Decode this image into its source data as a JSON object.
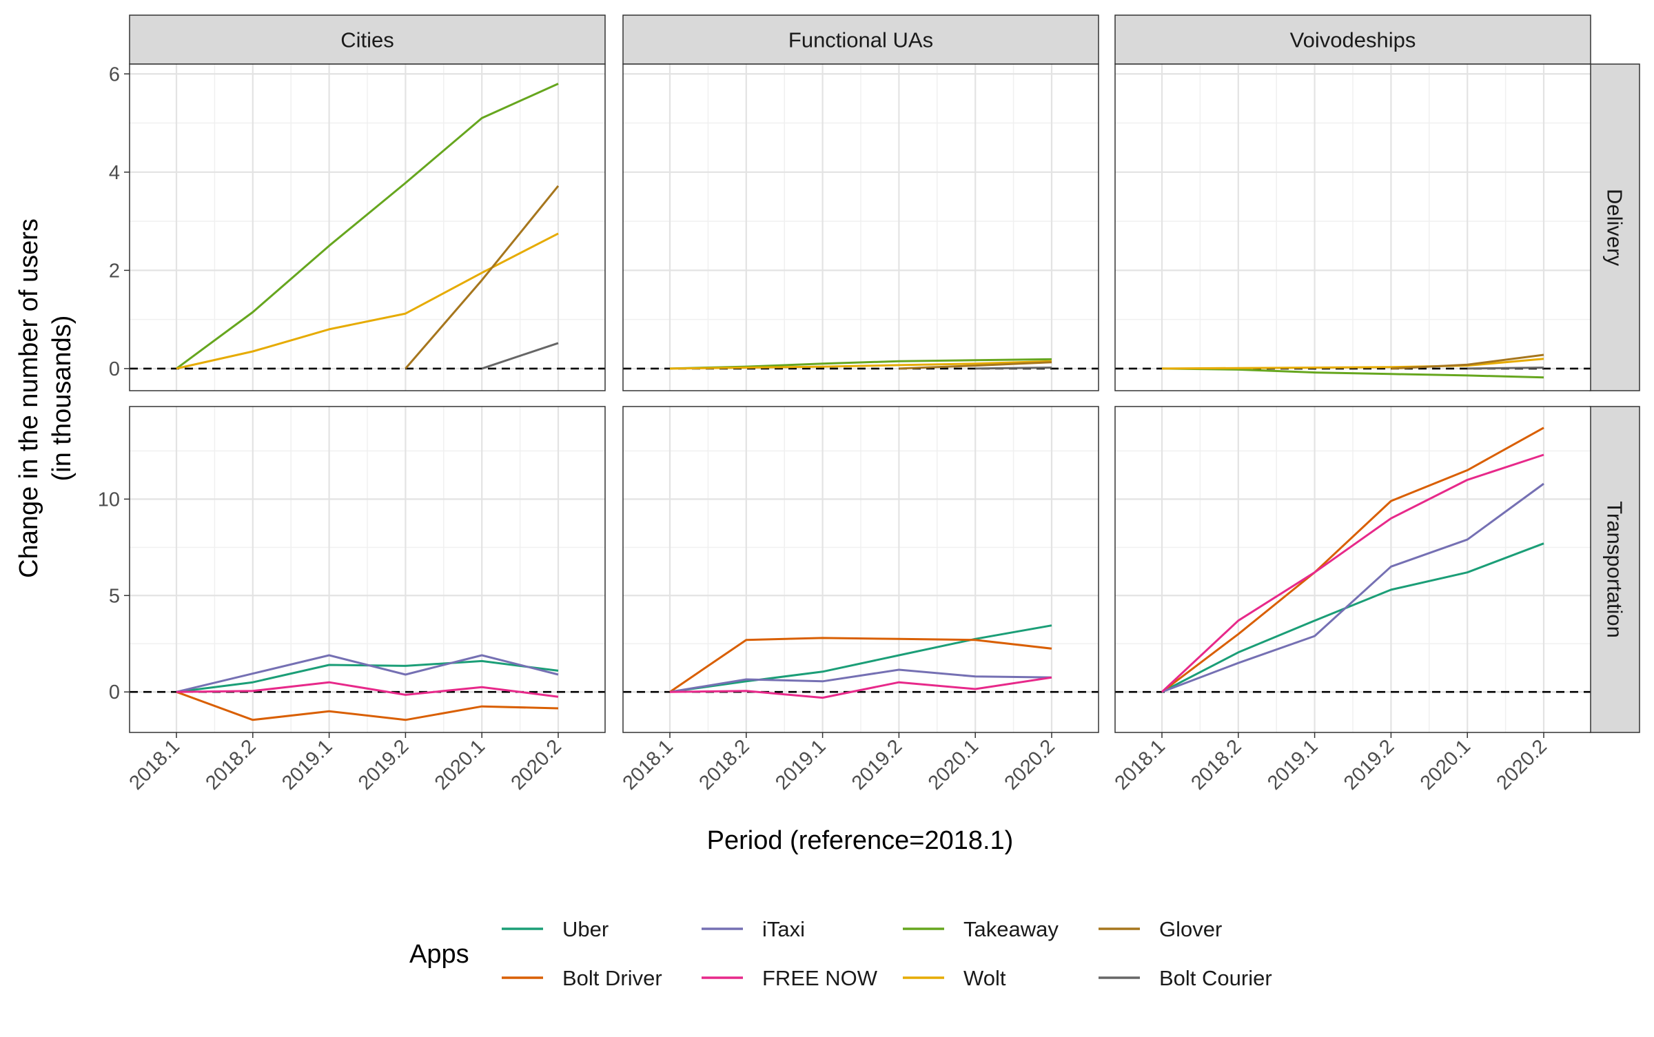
{
  "chart_data": {
    "type": "line",
    "layout": "facet-grid",
    "xlabel": "Period (reference=2018.1)",
    "ylabel_line1": "Change in the number of users",
    "ylabel_line2": "(in thousands)",
    "x": [
      "2018.1",
      "2018.2",
      "2019.1",
      "2019.2",
      "2020.1",
      "2020.2"
    ],
    "columns": [
      "Cities",
      "Functional UAs",
      "Voivodeships"
    ],
    "rows": [
      {
        "label": "Delivery",
        "ylim": [
          -0.45,
          6.2
        ],
        "yticks": [
          0,
          2,
          4,
          6
        ]
      },
      {
        "label": "Transportation",
        "ylim": [
          -2.1,
          14.8
        ],
        "yticks": [
          0,
          5,
          10
        ]
      }
    ],
    "reference_line": 0,
    "grid": true,
    "legend": {
      "title": "Apps",
      "position": "bottom",
      "entries": [
        {
          "name": "Uber",
          "color": "#1b9e77"
        },
        {
          "name": "Bolt Driver",
          "color": "#d95f02"
        },
        {
          "name": "iTaxi",
          "color": "#7570b3"
        },
        {
          "name": "FREE NOW",
          "color": "#e7298a"
        },
        {
          "name": "Takeaway",
          "color": "#66a61e"
        },
        {
          "name": "Wolt",
          "color": "#e6ab02"
        },
        {
          "name": "Glover",
          "color": "#a6761d"
        },
        {
          "name": "Bolt Courier",
          "color": "#666666"
        }
      ]
    },
    "panels": [
      {
        "row": "Delivery",
        "column": "Cities",
        "series": [
          {
            "name": "Takeaway",
            "values": [
              0,
              1.15,
              2.5,
              3.78,
              5.1,
              5.8
            ]
          },
          {
            "name": "Wolt",
            "values": [
              0,
              0.35,
              0.8,
              1.12,
              1.95,
              2.75
            ]
          },
          {
            "name": "Glover",
            "values": [
              null,
              null,
              null,
              0,
              1.8,
              3.72
            ]
          },
          {
            "name": "Bolt Courier",
            "values": [
              null,
              null,
              null,
              null,
              0,
              0.52
            ]
          }
        ]
      },
      {
        "row": "Delivery",
        "column": "Functional UAs",
        "series": [
          {
            "name": "Takeaway",
            "values": [
              0,
              0.04,
              0.1,
              0.15,
              0.17,
              0.19
            ]
          },
          {
            "name": "Wolt",
            "values": [
              0,
              0.02,
              0.04,
              0.07,
              0.1,
              0.15
            ]
          },
          {
            "name": "Glover",
            "values": [
              null,
              null,
              null,
              0,
              0.06,
              0.13
            ]
          },
          {
            "name": "Bolt Courier",
            "values": [
              null,
              null,
              null,
              null,
              0,
              0.02
            ]
          }
        ]
      },
      {
        "row": "Delivery",
        "column": "Voivodeships",
        "series": [
          {
            "name": "Takeaway",
            "values": [
              0,
              -0.02,
              -0.08,
              -0.11,
              -0.14,
              -0.18
            ]
          },
          {
            "name": "Wolt",
            "values": [
              0,
              0.01,
              0.02,
              0.03,
              0.06,
              0.2
            ]
          },
          {
            "name": "Glover",
            "values": [
              null,
              null,
              null,
              0,
              0.08,
              0.28
            ]
          },
          {
            "name": "Bolt Courier",
            "values": [
              null,
              null,
              null,
              null,
              0,
              0.02
            ]
          }
        ]
      },
      {
        "row": "Transportation",
        "column": "Cities",
        "series": [
          {
            "name": "Uber",
            "values": [
              0,
              0.5,
              1.4,
              1.35,
              1.6,
              1.1
            ]
          },
          {
            "name": "Bolt Driver",
            "values": [
              0,
              -1.45,
              -1.0,
              -1.45,
              -0.75,
              -0.85
            ]
          },
          {
            "name": "iTaxi",
            "values": [
              0,
              0.95,
              1.9,
              0.9,
              1.9,
              0.9
            ]
          },
          {
            "name": "FREE NOW",
            "values": [
              0,
              0.05,
              0.5,
              -0.15,
              0.25,
              -0.25
            ]
          }
        ]
      },
      {
        "row": "Transportation",
        "column": "Functional UAs",
        "series": [
          {
            "name": "Uber",
            "values": [
              0,
              0.55,
              1.05,
              1.9,
              2.75,
              3.45
            ]
          },
          {
            "name": "Bolt Driver",
            "values": [
              0,
              2.7,
              2.8,
              2.75,
              2.7,
              2.25
            ]
          },
          {
            "name": "iTaxi",
            "values": [
              0,
              0.65,
              0.55,
              1.15,
              0.8,
              0.75
            ]
          },
          {
            "name": "FREE NOW",
            "values": [
              0,
              0.05,
              -0.3,
              0.5,
              0.15,
              0.75
            ]
          }
        ]
      },
      {
        "row": "Transportation",
        "column": "Voivodeships",
        "series": [
          {
            "name": "Uber",
            "values": [
              0,
              2.05,
              3.7,
              5.3,
              6.2,
              7.7
            ]
          },
          {
            "name": "Bolt Driver",
            "values": [
              0,
              3.0,
              6.2,
              9.9,
              11.5,
              13.7
            ]
          },
          {
            "name": "iTaxi",
            "values": [
              0,
              1.5,
              2.9,
              6.5,
              7.9,
              10.8
            ]
          },
          {
            "name": "FREE NOW",
            "values": [
              0,
              3.7,
              6.2,
              9.0,
              11.0,
              12.3
            ]
          }
        ]
      }
    ]
  }
}
